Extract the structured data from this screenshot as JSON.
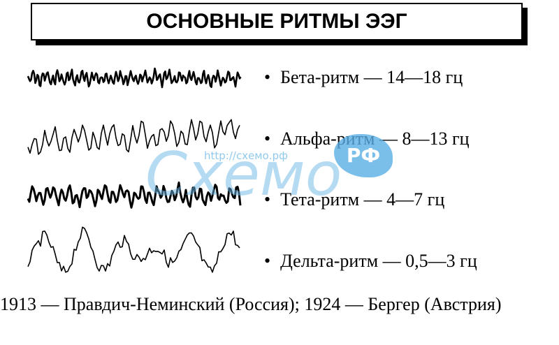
{
  "title": "ОСНОВНЫЕ РИТМЫ ЭЭГ",
  "rhythms": [
    "Бета-ритм — 14—18 гц",
    "Альфа-ритм — 8—13 гц",
    "Тета-ритм — 4—7 гц",
    "Дельта-ритм — 0,5—3 гц"
  ],
  "footer": "1913 — Правдич-Неминский (Россия); 1924 — Бергер (Австрия)",
  "watermark": {
    "url": "http://схемо.рф",
    "logo": "Схемо",
    "badge": "РФ"
  }
}
